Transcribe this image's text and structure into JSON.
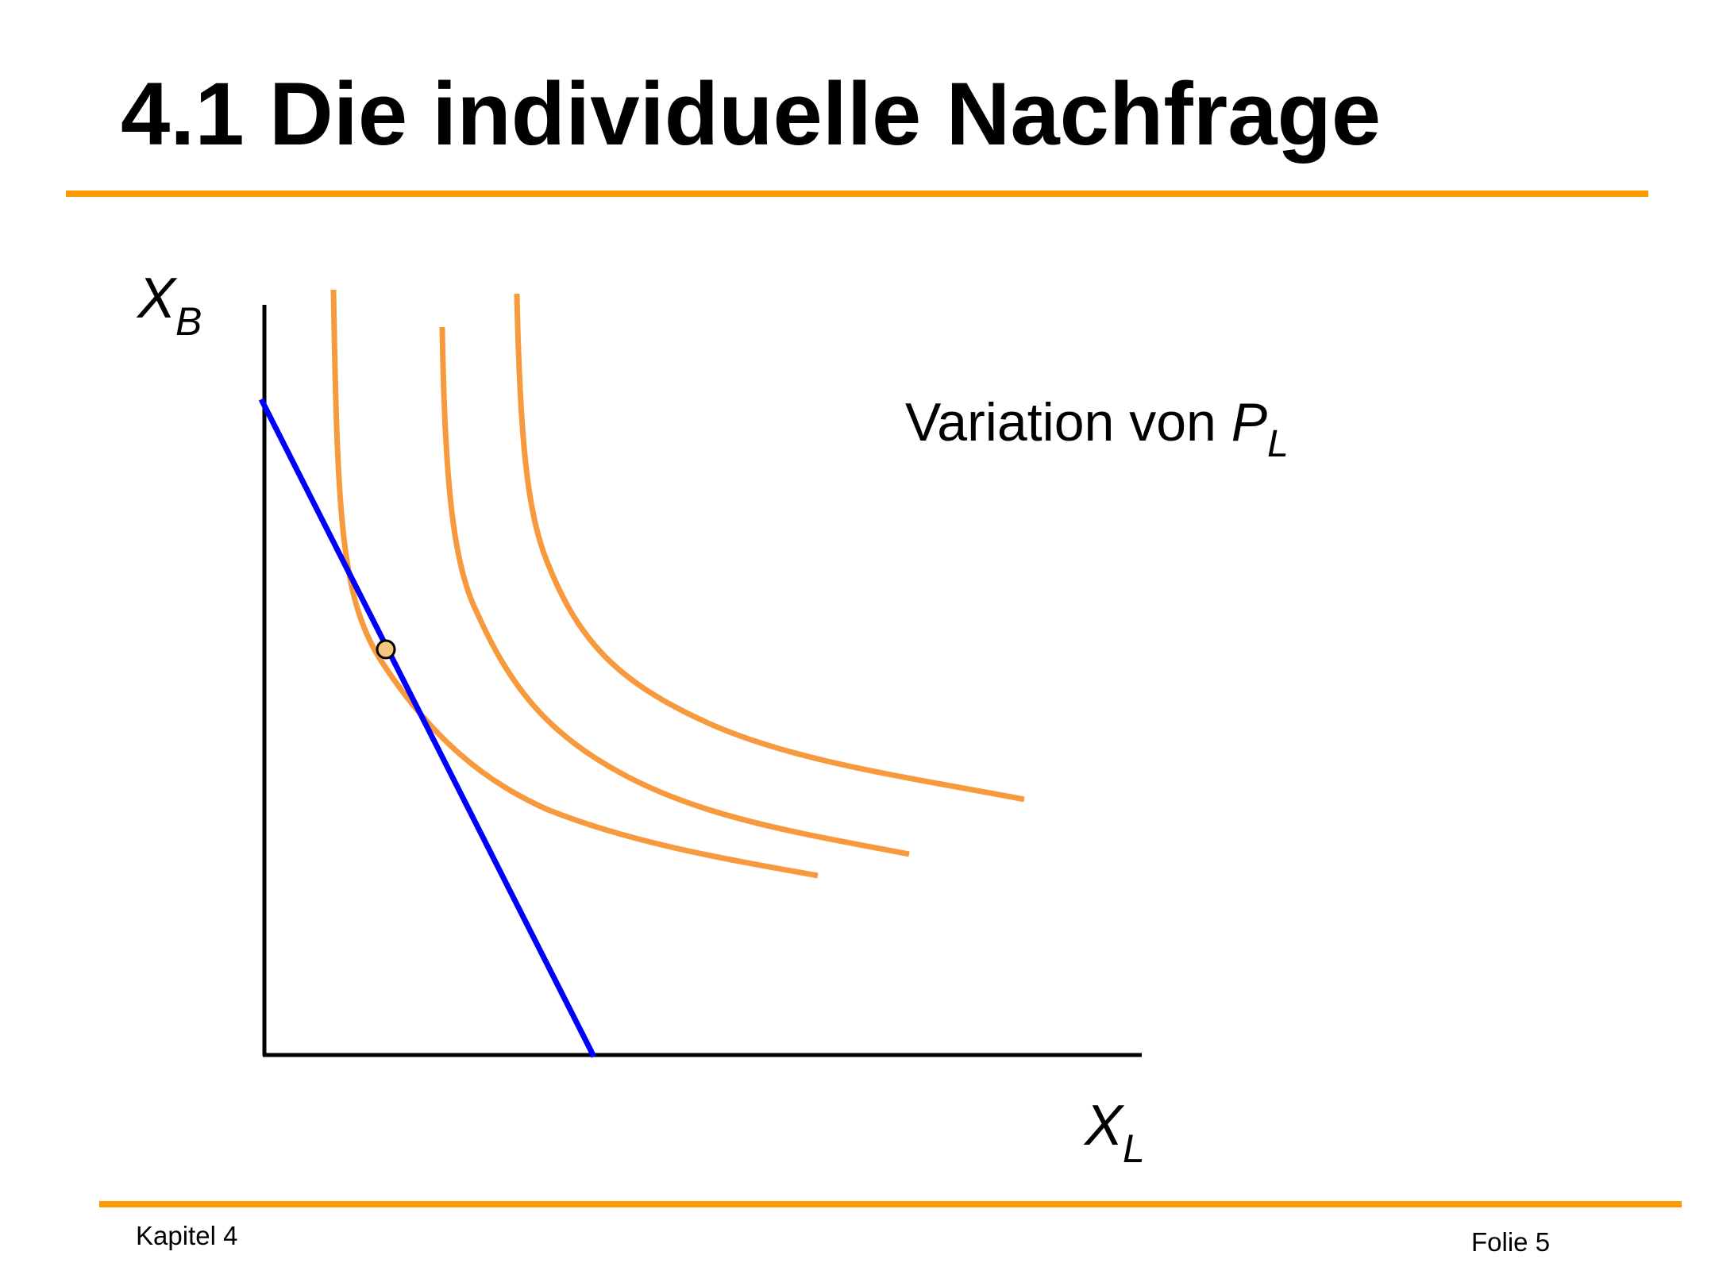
{
  "slide": {
    "title": "4.1 Die individuelle Nachfrage",
    "footer_left": "Kapitel 4",
    "footer_right": "Folie 5"
  },
  "diagram": {
    "y_axis_label": {
      "main": "X",
      "sub": "B"
    },
    "x_axis_label": {
      "main": "X",
      "sub": "L"
    },
    "annotation": {
      "text": "Variation von ",
      "var": "P",
      "sub": "L"
    },
    "indifference_curves": 3,
    "budget_lines": 1,
    "tangency_points": 1
  },
  "colors": {
    "accent_rule": "#ff9900",
    "indifference_curve": "#f79a3e",
    "budget_line": "#0000ff",
    "tangency_point_fill": "#f6c67e",
    "axis": "#000000"
  }
}
